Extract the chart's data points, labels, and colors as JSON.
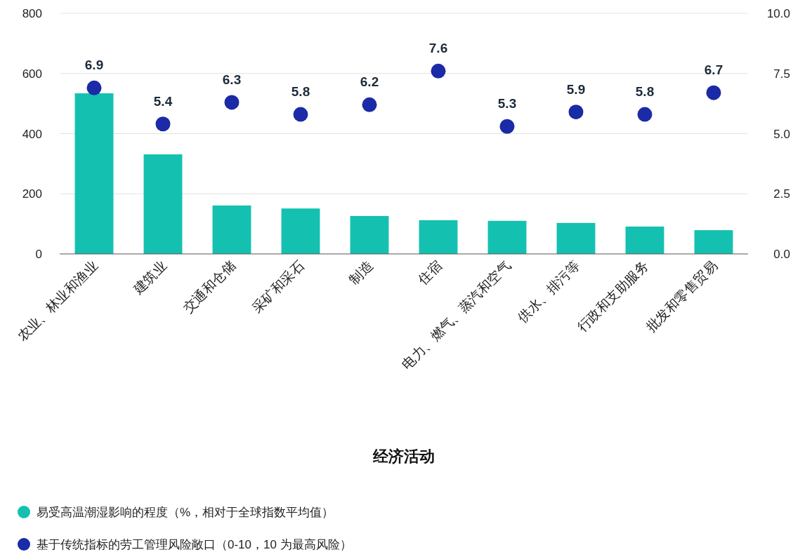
{
  "chart_data": {
    "type": "bar",
    "xlabel": "经济活动",
    "categories": [
      "农业、林业和渔业",
      "建筑业",
      "交通和仓储",
      "采矿和采石",
      "制造",
      "住宿",
      "电力、燃气、蒸汽和空气",
      "供水、排污等",
      "行政和支助服务",
      "批发和零售贸易"
    ],
    "series": [
      {
        "name": "易受高温潮湿影响的程度（%，相对于全球指数平均值）",
        "type": "bar",
        "color": "#14c1b0",
        "values": [
          534,
          331,
          161,
          151,
          126,
          112,
          110,
          103,
          91,
          79
        ]
      },
      {
        "name": "基于传统指标的劳工管理风险敞口（0-10，10 为最高风险）",
        "type": "scatter",
        "axis": "y2",
        "marker": "circle",
        "data_labels": true,
        "color": "#1b2aa6",
        "values": [
          6.9,
          5.4,
          6.3,
          5.8,
          6.2,
          7.6,
          5.3,
          5.9,
          5.8,
          6.7
        ]
      }
    ],
    "ylim": [
      0,
      800
    ],
    "yticks": [
      0,
      200,
      400,
      600,
      800
    ],
    "y2lim": [
      0,
      10
    ],
    "y2ticks": [
      {
        "value": 0,
        "label": "0.0"
      },
      {
        "value": 2.5,
        "label": "2.5"
      },
      {
        "value": 5,
        "label": "5.0"
      },
      {
        "value": 7.5,
        "label": "7.5"
      },
      {
        "value": 10,
        "label": "10.0"
      }
    ],
    "grid": "y",
    "legend": "bottom"
  }
}
